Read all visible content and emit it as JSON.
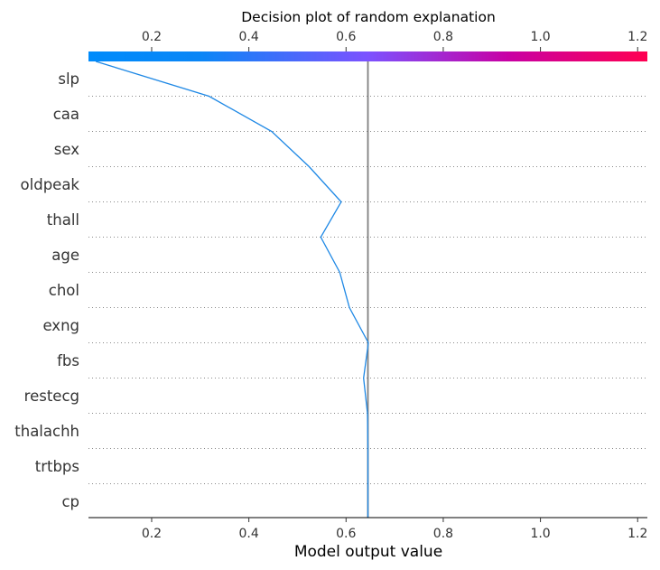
{
  "chart_data": {
    "type": "line",
    "title": "Decision plot of random explanation",
    "xlabel": "Model output value",
    "xlim": [
      0.07,
      1.22
    ],
    "xticks": [
      0.2,
      0.4,
      0.6,
      0.8,
      1.0,
      1.2
    ],
    "xtick_labels": [
      "0.2",
      "0.4",
      "0.6",
      "0.8",
      "1.0",
      "1.2"
    ],
    "base_value": 0.645,
    "features": [
      "slp",
      "caa",
      "sex",
      "oldpeak",
      "thall",
      "age",
      "chol",
      "exng",
      "fbs",
      "restecg",
      "thalachh",
      "trtbps",
      "cp"
    ],
    "path_x": [
      0.085,
      0.318,
      0.447,
      0.524,
      0.59,
      0.548,
      0.587,
      0.607,
      0.646,
      0.636,
      0.644,
      0.645,
      0.645,
      0.645
    ],
    "grid": "dotted horizontal lines between features",
    "colorbar": {
      "position": "top",
      "colors": [
        "#008bfb",
        "#7c52ff",
        "#ff0051"
      ]
    },
    "colors": {
      "path": "#1e88e5",
      "base_line": "#808080",
      "text": "#333333"
    }
  }
}
